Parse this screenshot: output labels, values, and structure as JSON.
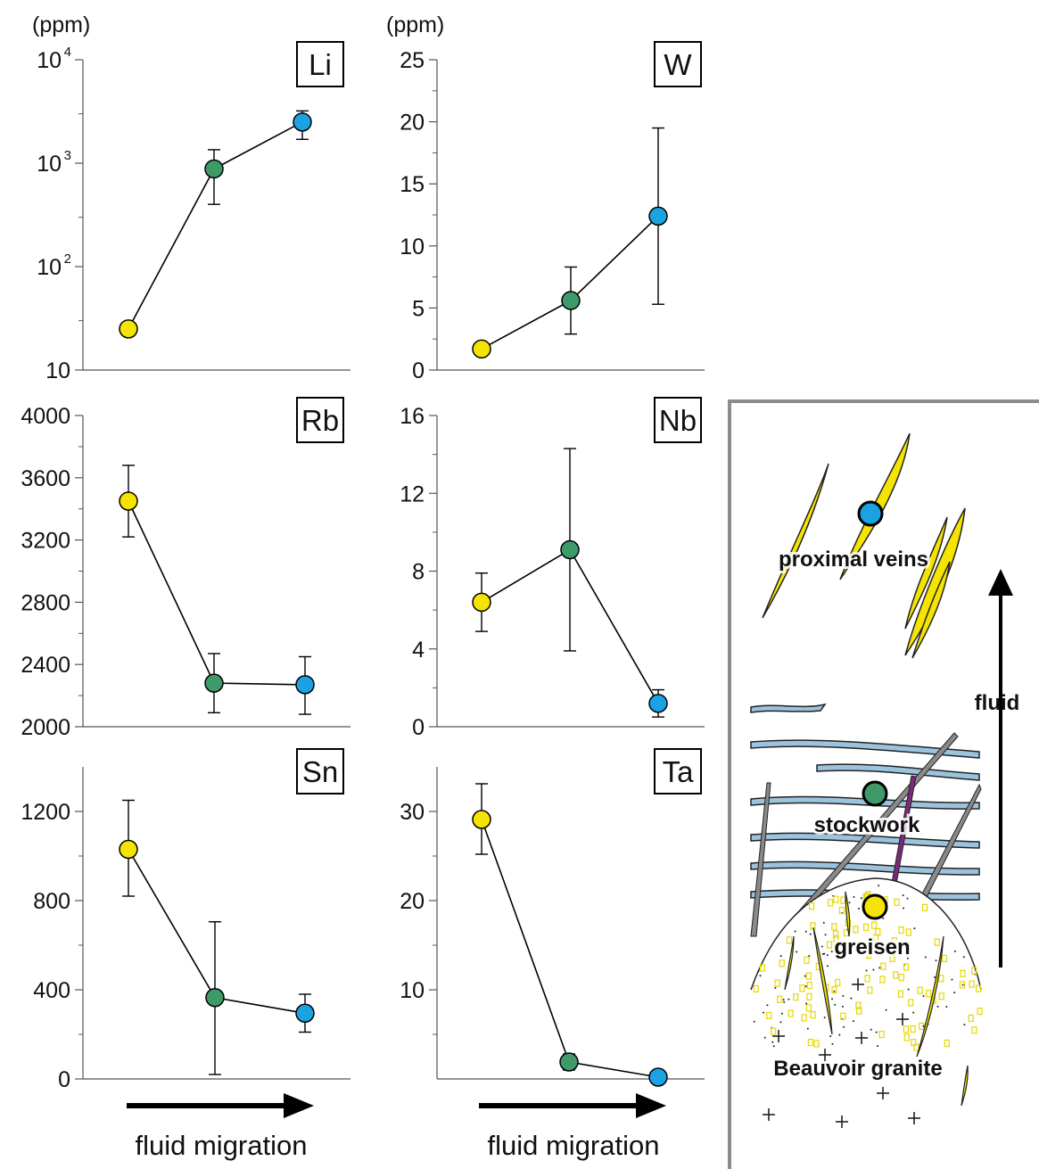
{
  "colors": {
    "stage_greisen": "#f5e400",
    "stage_stockwork": "#3f9a6a",
    "stage_proximal": "#1aa3e0",
    "vein_yellow": "#f5e400",
    "vein_blue": "#9cc3de",
    "vein_gray": "#8a8a8a",
    "vein_purple": "#7a2a7a",
    "frame_gray": "#8c8c8c"
  },
  "chart_data": [
    {
      "type": "line",
      "element": "Li",
      "unit_label": "(ppm)",
      "log_scale": true,
      "ylim": [
        10,
        10000
      ],
      "yticks": [
        10,
        100,
        1000,
        10000
      ],
      "ytick_labels": [
        {
          "base": "10",
          "exp": ""
        },
        {
          "base": "10",
          "exp": "2"
        },
        {
          "base": "10",
          "exp": "3"
        },
        {
          "base": "10",
          "exp": "4"
        }
      ],
      "categories": [
        "greisen",
        "stockwork",
        "proximal veins"
      ],
      "values": [
        25,
        880,
        2500
      ],
      "err_low": [
        23,
        400,
        1700
      ],
      "err_high": [
        28,
        1350,
        3200
      ],
      "grid": false
    },
    {
      "type": "line",
      "element": "W",
      "unit_label": "(ppm)",
      "log_scale": false,
      "ylim": [
        0,
        25
      ],
      "yticks": [
        0,
        5,
        10,
        15,
        20,
        25
      ],
      "ytick_labels": [
        "0",
        "5",
        "10",
        "15",
        "20",
        "25"
      ],
      "categories": [
        "greisen",
        "stockwork",
        "proximal veins"
      ],
      "values": [
        1.7,
        5.6,
        12.4
      ],
      "err_low": [
        null,
        2.9,
        5.3
      ],
      "err_high": [
        null,
        8.3,
        19.5
      ],
      "grid": false
    },
    {
      "type": "line",
      "element": "Rb",
      "unit_label": "",
      "log_scale": false,
      "ylim": [
        2000,
        4000
      ],
      "yticks": [
        2000,
        2400,
        2800,
        3200,
        3600,
        4000
      ],
      "ytick_labels": [
        "2000",
        "2400",
        "2800",
        "3200",
        "3600",
        "4000"
      ],
      "categories": [
        "greisen",
        "stockwork",
        "proximal veins"
      ],
      "values": [
        3450,
        2280,
        2270
      ],
      "err_low": [
        3220,
        2090,
        2080
      ],
      "err_high": [
        3680,
        2470,
        2450
      ],
      "grid": false
    },
    {
      "type": "line",
      "element": "Nb",
      "unit_label": "",
      "log_scale": false,
      "ylim": [
        0,
        16
      ],
      "yticks": [
        0,
        4,
        8,
        12,
        16
      ],
      "ytick_labels": [
        "0",
        "4",
        "8",
        "12",
        "16"
      ],
      "categories": [
        "greisen",
        "stockwork",
        "proximal veins"
      ],
      "values": [
        6.4,
        9.1,
        1.2
      ],
      "err_low": [
        4.9,
        3.9,
        0.5
      ],
      "err_high": [
        7.9,
        14.3,
        1.9
      ],
      "grid": false
    },
    {
      "type": "line",
      "element": "Sn",
      "unit_label": "",
      "log_scale": false,
      "ylim": [
        0,
        1400
      ],
      "yticks": [
        0,
        400,
        800,
        1200
      ],
      "ytick_labels": [
        "0",
        "400",
        "800",
        "1200"
      ],
      "categories": [
        "greisen",
        "stockwork",
        "proximal veins"
      ],
      "values": [
        1030,
        365,
        295
      ],
      "err_low": [
        820,
        20,
        210
      ],
      "err_high": [
        1250,
        705,
        380
      ],
      "grid": false
    },
    {
      "type": "line",
      "element": "Ta",
      "unit_label": "",
      "log_scale": false,
      "ylim": [
        0,
        35
      ],
      "yticks": [
        10,
        20,
        30
      ],
      "ytick_labels": [
        "10",
        "20",
        "30"
      ],
      "categories": [
        "greisen",
        "stockwork",
        "proximal veins"
      ],
      "values": [
        29.1,
        1.9,
        0.2
      ],
      "err_low": [
        25.2,
        1.0,
        null
      ],
      "err_high": [
        33.1,
        2.8,
        null
      ],
      "grid": false
    }
  ],
  "x_arrow_label": "fluid migration",
  "diagram": {
    "proximal_label": "proximal veins",
    "stockwork_label": "stockwork",
    "greisen_label": "greisen",
    "granite_label": "Beauvoir granite",
    "fluid_label": "fluid"
  }
}
